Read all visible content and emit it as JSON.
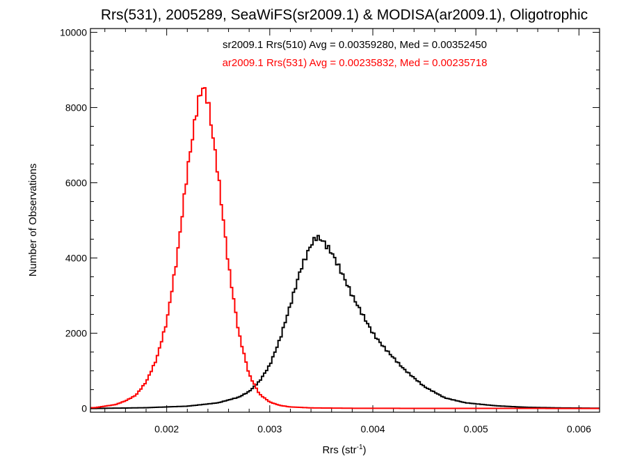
{
  "chart_data": {
    "type": "line",
    "title": "Rrs(531), 2005289, SeaWiFS(sr2009.1) & MODISA(ar2009.1), Oligotrophic",
    "xlabel": "Rrs (str",
    "xlabel_superscript": "-1",
    "xlabel_close": ")",
    "ylabel": "Number of Observations",
    "xlim": [
      0.00126,
      0.0062
    ],
    "ylim": [
      -100,
      10100
    ],
    "x_ticks": [
      0.002,
      0.003,
      0.004,
      0.005,
      0.006
    ],
    "x_tick_labels": [
      "0.002",
      "0.003",
      "0.004",
      "0.005",
      "0.006"
    ],
    "y_ticks": [
      0,
      2000,
      4000,
      6000,
      8000,
      10000
    ],
    "y_tick_labels": [
      "0",
      "2000",
      "4000",
      "6000",
      "8000",
      "10000"
    ],
    "x_minor_step": 0.0002,
    "y_minor_step": 500,
    "grid": false,
    "legend_position": "top-center",
    "series": [
      {
        "name": "sr2009.1 Rrs(510) Avg = 0.00359280, Med = 0.00352450",
        "color": "#000000",
        "step": true,
        "x": [
          0.0013,
          0.0018,
          0.0022,
          0.0025,
          0.0027,
          0.0028,
          0.0029,
          0.003,
          0.0031,
          0.0032,
          0.0033,
          0.0034,
          0.00345,
          0.0035,
          0.0036,
          0.0037,
          0.0038,
          0.0039,
          0.004,
          0.0041,
          0.0042,
          0.0043,
          0.0045,
          0.0047,
          0.0049,
          0.0052,
          0.0055,
          0.0058,
          0.0062
        ],
        "y": [
          0,
          20,
          60,
          150,
          300,
          450,
          720,
          1150,
          1850,
          2750,
          3700,
          4350,
          4550,
          4500,
          4150,
          3600,
          3000,
          2500,
          2000,
          1650,
          1350,
          1050,
          580,
          280,
          150,
          70,
          30,
          15,
          5
        ]
      },
      {
        "name": "ar2009.1 Rrs(531) Avg = 0.00235832, Med = 0.00235718",
        "color": "#ff0000",
        "step": true,
        "x": [
          0.0013,
          0.0015,
          0.0016,
          0.0017,
          0.0018,
          0.0019,
          0.002,
          0.0021,
          0.0022,
          0.0023,
          0.00235,
          0.0024,
          0.0025,
          0.0026,
          0.0027,
          0.0028,
          0.0029,
          0.003,
          0.0031,
          0.0032,
          0.0034,
          0.0038,
          0.0045,
          0.0062
        ],
        "y": [
          20,
          100,
          200,
          350,
          700,
          1300,
          2300,
          4000,
          6300,
          8100,
          8550,
          8200,
          6200,
          3800,
          2000,
          900,
          380,
          170,
          80,
          40,
          15,
          5,
          2,
          0
        ]
      }
    ]
  }
}
